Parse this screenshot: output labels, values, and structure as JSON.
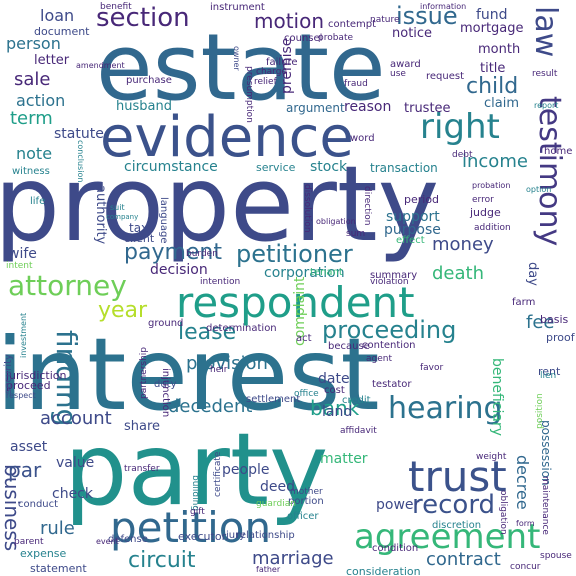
{
  "words": [
    {
      "text": "property",
      "color": "#3e4a89"
    },
    {
      "text": "interest",
      "color": "#2c728e"
    },
    {
      "text": "estate",
      "color": "#31688e"
    },
    {
      "text": "party",
      "color": "#21918c"
    },
    {
      "text": "evidence",
      "color": "#3b528b"
    },
    {
      "text": "respondent",
      "color": "#1f9e89"
    },
    {
      "text": "petition",
      "color": "#31688e"
    },
    {
      "text": "agreement",
      "color": "#35b779"
    },
    {
      "text": "trust",
      "color": "#3b528b"
    },
    {
      "text": "hearing",
      "color": "#2c728e"
    },
    {
      "text": "attorney",
      "color": "#6ece58"
    },
    {
      "text": "right",
      "color": "#26828e"
    },
    {
      "text": "section",
      "color": "#482878"
    },
    {
      "text": "testimony",
      "color": "#443983"
    },
    {
      "text": "petitioner",
      "color": "#2c728e"
    },
    {
      "text": "payment",
      "color": "#31688e"
    },
    {
      "text": "proceeding",
      "color": "#26828e"
    },
    {
      "text": "finding",
      "color": "#2c728e"
    },
    {
      "text": "circuit",
      "color": "#26828e"
    },
    {
      "text": "marriage",
      "color": "#3e4a89"
    },
    {
      "text": "record",
      "color": "#3b528b"
    },
    {
      "text": "law",
      "color": "#3e4a89"
    },
    {
      "text": "lease",
      "color": "#26828e"
    },
    {
      "text": "issue",
      "color": "#31688e"
    },
    {
      "text": "motion",
      "color": "#482878"
    },
    {
      "text": "child",
      "color": "#31688e"
    },
    {
      "text": "year",
      "color": "#b5de2b"
    },
    {
      "text": "business",
      "color": "#3e4a89"
    },
    {
      "text": "bank",
      "color": "#1f9e89"
    },
    {
      "text": "decedent",
      "color": "#2c728e"
    },
    {
      "text": "account",
      "color": "#3e4a89"
    },
    {
      "text": "income",
      "color": "#26828e"
    },
    {
      "text": "money",
      "color": "#3e4a89"
    },
    {
      "text": "death",
      "color": "#35b779"
    },
    {
      "text": "par",
      "color": "#3b528b"
    },
    {
      "text": "fee",
      "color": "#2c728e"
    },
    {
      "text": "rule",
      "color": "#31688e"
    },
    {
      "text": "decree",
      "color": "#31688e"
    },
    {
      "text": "contract",
      "color": "#31688e"
    },
    {
      "text": "sale",
      "color": "#482878"
    },
    {
      "text": "action",
      "color": "#2c728e"
    },
    {
      "text": "term",
      "color": "#1f9e89"
    },
    {
      "text": "person",
      "color": "#2c728e"
    },
    {
      "text": "possession",
      "color": "#31688e"
    },
    {
      "text": "provision",
      "color": "#2c728e"
    },
    {
      "text": "note",
      "color": "#26828e"
    },
    {
      "text": "loan",
      "color": "#3e4a89"
    },
    {
      "text": "fund",
      "color": "#3e4a89"
    },
    {
      "text": "decision",
      "color": "#482878"
    },
    {
      "text": "corporation",
      "color": "#26828e"
    },
    {
      "text": "deed",
      "color": "#3e4a89"
    },
    {
      "text": "check",
      "color": "#3e4a89"
    },
    {
      "text": "wife",
      "color": "#3e4a89"
    },
    {
      "text": "husband",
      "color": "#26828e"
    },
    {
      "text": "stock",
      "color": "#26828e"
    },
    {
      "text": "complaint",
      "color": "#6ece58"
    },
    {
      "text": "matter",
      "color": "#35b779"
    },
    {
      "text": "land",
      "color": "#3e4a89"
    },
    {
      "text": "date",
      "color": "#3e4a89"
    },
    {
      "text": "beneficiary",
      "color": "#35b779"
    },
    {
      "text": "support",
      "color": "#2c728e"
    },
    {
      "text": "purpose",
      "color": "#31688e"
    },
    {
      "text": "trustee",
      "color": "#482878"
    },
    {
      "text": "reason",
      "color": "#482878"
    },
    {
      "text": "claim",
      "color": "#31688e"
    },
    {
      "text": "premise",
      "color": "#482878"
    },
    {
      "text": "argument",
      "color": "#31688e"
    },
    {
      "text": "circumstance",
      "color": "#26828e"
    },
    {
      "text": "statute",
      "color": "#3e4a89"
    },
    {
      "text": "power",
      "color": "#3e4a89"
    },
    {
      "text": "people",
      "color": "#3e4a89"
    },
    {
      "text": "asset",
      "color": "#3e4a89"
    },
    {
      "text": "value",
      "color": "#3e4a89"
    },
    {
      "text": "share",
      "color": "#3e4a89"
    },
    {
      "text": "mortgage",
      "color": "#482878"
    },
    {
      "text": "notice",
      "color": "#482878"
    },
    {
      "text": "document",
      "color": "#3e4a89"
    },
    {
      "text": "letter",
      "color": "#482878"
    },
    {
      "text": "authority",
      "color": "#3e4a89"
    },
    {
      "text": "title",
      "color": "#482878"
    },
    {
      "text": "month",
      "color": "#482878"
    },
    {
      "text": "day",
      "color": "#3e4a89"
    },
    {
      "text": "tax",
      "color": "#3e4a89"
    },
    {
      "text": "client",
      "color": "#3e4a89"
    },
    {
      "text": "period",
      "color": "#482878"
    },
    {
      "text": "judge",
      "color": "#482878"
    },
    {
      "text": "transaction",
      "color": "#26828e"
    },
    {
      "text": "service",
      "color": "#26828e"
    },
    {
      "text": "jurisdiction",
      "color": "#482878"
    },
    {
      "text": "proceed",
      "color": "#482878"
    },
    {
      "text": "expense",
      "color": "#26828e"
    },
    {
      "text": "statement",
      "color": "#3e4a89"
    },
    {
      "text": "consideration",
      "color": "#26828e"
    },
    {
      "text": "condition",
      "color": "#482878"
    },
    {
      "text": "executor",
      "color": "#3e4a89"
    },
    {
      "text": "relationship",
      "color": "#3e4a89"
    },
    {
      "text": "jury",
      "color": "#3e4a89"
    },
    {
      "text": "officer",
      "color": "#26828e"
    },
    {
      "text": "portion",
      "color": "#3e4a89"
    },
    {
      "text": "discretion",
      "color": "#26828e"
    },
    {
      "text": "determination",
      "color": "#482878"
    },
    {
      "text": "contention",
      "color": "#482878"
    },
    {
      "text": "summary",
      "color": "#482878"
    },
    {
      "text": "testator",
      "color": "#482878"
    },
    {
      "text": "settlement",
      "color": "#3e4a89"
    },
    {
      "text": "duty",
      "color": "#3e4a89"
    },
    {
      "text": "cost",
      "color": "#482878"
    },
    {
      "text": "credit",
      "color": "#26828e"
    },
    {
      "text": "rent",
      "color": "#3e4a89"
    },
    {
      "text": "farm",
      "color": "#482878"
    },
    {
      "text": "basis",
      "color": "#482878"
    },
    {
      "text": "proof",
      "color": "#3e4a89"
    },
    {
      "text": "because",
      "color": "#482878"
    },
    {
      "text": "act",
      "color": "#482878"
    },
    {
      "text": "intent",
      "color": "#6ece58"
    },
    {
      "text": "security",
      "color": "#3e4a89"
    },
    {
      "text": "conduct",
      "color": "#3e4a89"
    },
    {
      "text": "defense",
      "color": "#3e4a89"
    },
    {
      "text": "ground",
      "color": "#482878"
    },
    {
      "text": "language",
      "color": "#3e4a89"
    },
    {
      "text": "tenant",
      "color": "#35b779"
    },
    {
      "text": "effect",
      "color": "#35b779"
    },
    {
      "text": "witness",
      "color": "#26828e"
    },
    {
      "text": "life",
      "color": "#26828e"
    },
    {
      "text": "contempt",
      "color": "#482878"
    },
    {
      "text": "instrument",
      "color": "#482878"
    },
    {
      "text": "benefit",
      "color": "#482878"
    },
    {
      "text": "counsel",
      "color": "#482878"
    },
    {
      "text": "probate",
      "color": "#482878"
    },
    {
      "text": "nature",
      "color": "#482878"
    },
    {
      "text": "failure",
      "color": "#482878"
    },
    {
      "text": "charge",
      "color": "#482878"
    },
    {
      "text": "relief",
      "color": "#482878"
    },
    {
      "text": "presumption",
      "color": "#482878"
    },
    {
      "text": "purchase",
      "color": "#482878"
    },
    {
      "text": "fraud",
      "color": "#482878"
    },
    {
      "text": "award",
      "color": "#482878"
    },
    {
      "text": "use",
      "color": "#482878"
    },
    {
      "text": "request",
      "color": "#482878"
    },
    {
      "text": "result",
      "color": "#482878"
    },
    {
      "text": "report",
      "color": "#26828e"
    },
    {
      "text": "word",
      "color": "#482878"
    },
    {
      "text": "home",
      "color": "#482878"
    },
    {
      "text": "debt",
      "color": "#482878"
    },
    {
      "text": "error",
      "color": "#482878"
    },
    {
      "text": "addition",
      "color": "#482878"
    },
    {
      "text": "probation",
      "color": "#482878"
    },
    {
      "text": "option",
      "color": "#26828e"
    },
    {
      "text": "sum",
      "color": "#482878"
    },
    {
      "text": "direction",
      "color": "#482878"
    },
    {
      "text": "dissolution",
      "color": "#482878"
    },
    {
      "text": "burden",
      "color": "#482878"
    },
    {
      "text": "intention",
      "color": "#482878"
    },
    {
      "text": "violation",
      "color": "#482878"
    },
    {
      "text": "favor",
      "color": "#482878"
    },
    {
      "text": "agent",
      "color": "#482878"
    },
    {
      "text": "office",
      "color": "#26828e"
    },
    {
      "text": "injunction",
      "color": "#482878"
    },
    {
      "text": "partnership",
      "color": "#482878"
    },
    {
      "text": "heir",
      "color": "#482878"
    },
    {
      "text": "building",
      "color": "#26828e"
    },
    {
      "text": "certificate",
      "color": "#3e4a89"
    },
    {
      "text": "gift",
      "color": "#482878"
    },
    {
      "text": "guardian",
      "color": "#6ece58"
    },
    {
      "text": "mother",
      "color": "#3e4a89"
    },
    {
      "text": "transfer",
      "color": "#482878"
    },
    {
      "text": "affidavit",
      "color": "#482878"
    },
    {
      "text": "weight",
      "color": "#482878"
    },
    {
      "text": "position",
      "color": "#6ece58"
    },
    {
      "text": "lien",
      "color": "#26828e"
    },
    {
      "text": "maintenance",
      "color": "#482878"
    },
    {
      "text": "obligation",
      "color": "#482878"
    },
    {
      "text": "spouse",
      "color": "#482878"
    },
    {
      "text": "concur",
      "color": "#482878"
    },
    {
      "text": "father",
      "color": "#482878"
    },
    {
      "text": "event",
      "color": "#482878"
    },
    {
      "text": "parent",
      "color": "#482878"
    },
    {
      "text": "investment",
      "color": "#26828e"
    },
    {
      "text": "conclusion",
      "color": "#26828e"
    },
    {
      "text": "suit",
      "color": "#26828e"
    },
    {
      "text": "company",
      "color": "#26828e"
    },
    {
      "text": "amendment",
      "color": "#482878"
    },
    {
      "text": "information",
      "color": "#482878"
    },
    {
      "text": "obligation",
      "color": "#482878"
    },
    {
      "text": "owner",
      "color": "#3e4a89"
    },
    {
      "text": "respect",
      "color": "#3e4a89"
    },
    {
      "text": "form",
      "color": "#482878"
    }
  ]
}
